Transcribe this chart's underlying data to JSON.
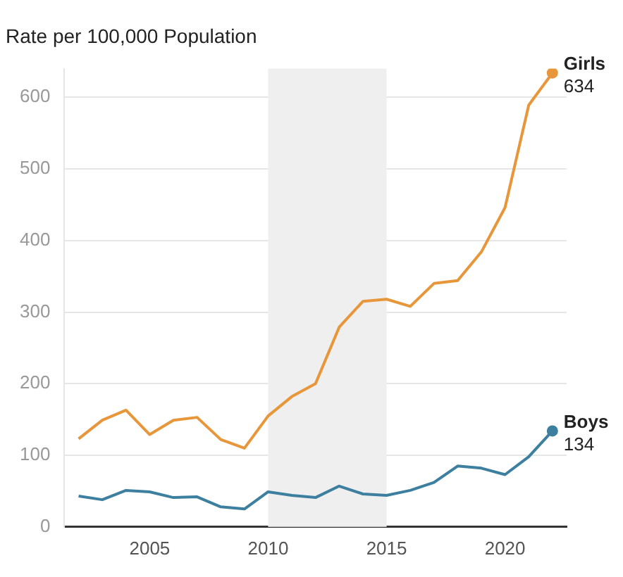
{
  "chart_data": {
    "type": "line",
    "title": "Rate per 100,000 Population",
    "x": [
      2002,
      2003,
      2004,
      2005,
      2006,
      2007,
      2008,
      2009,
      2010,
      2011,
      2012,
      2013,
      2014,
      2015,
      2016,
      2017,
      2018,
      2019,
      2020,
      2021,
      2022
    ],
    "series": [
      {
        "name": "Girls",
        "color": "#e8963a",
        "values": [
          123,
          149,
          163,
          129,
          149,
          153,
          122,
          110,
          155,
          182,
          200,
          279,
          315,
          318,
          308,
          340,
          344,
          384,
          446,
          589,
          634
        ],
        "value_labels": [
          null,
          null,
          null,
          null,
          null,
          null,
          null,
          null,
          null,
          null,
          null,
          null,
          null,
          null,
          null,
          null,
          null,
          null,
          null,
          null,
          "634"
        ]
      },
      {
        "name": "Boys",
        "color": "#3d7f9e",
        "values": [
          43,
          38,
          51,
          49,
          41,
          42,
          28,
          25,
          49,
          44,
          41,
          57,
          46,
          44,
          51,
          62,
          85,
          82,
          73,
          98,
          134
        ],
        "value_labels": [
          null,
          null,
          null,
          null,
          null,
          null,
          null,
          null,
          null,
          null,
          null,
          null,
          null,
          null,
          null,
          null,
          null,
          null,
          null,
          null,
          "134"
        ]
      }
    ],
    "xlim": [
      2001.4,
      2022.6
    ],
    "xticks": [
      2005,
      2010,
      2015,
      2020
    ],
    "ylim": [
      0,
      640
    ],
    "yticks": [
      0,
      100,
      200,
      300,
      400,
      500,
      600
    ],
    "bands": [
      {
        "axis": "x",
        "from": 2010,
        "to": 2015,
        "color": "#efefef"
      }
    ],
    "grid": "y",
    "legend": false
  }
}
